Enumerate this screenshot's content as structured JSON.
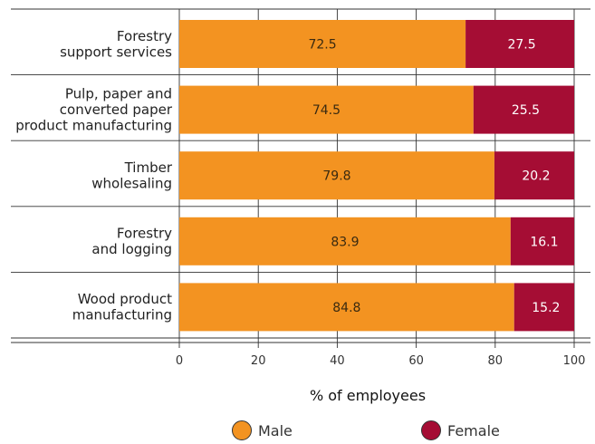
{
  "chart_data": {
    "type": "bar",
    "orientation": "horizontal",
    "stacked": true,
    "categories": [
      [
        "Forestry",
        "support services"
      ],
      [
        "Pulp, paper and",
        "converted paper",
        "product manufacturing"
      ],
      [
        "Timber",
        "wholesaling"
      ],
      [
        "Forestry",
        "and logging"
      ],
      [
        "Wood product",
        "manufacturing"
      ]
    ],
    "series": [
      {
        "name": "Male",
        "values": [
          72.5,
          74.5,
          79.8,
          83.9,
          84.8
        ],
        "color": "#F39321"
      },
      {
        "name": "Female",
        "values": [
          27.5,
          25.5,
          20.2,
          16.1,
          15.2
        ],
        "color": "#A50D34"
      }
    ],
    "xlabel": "% of employees",
    "xlim": [
      0,
      100
    ],
    "xticks": [
      "0",
      "20",
      "40",
      "60",
      "80",
      "100"
    ],
    "grid": true,
    "legend": "bottom"
  }
}
